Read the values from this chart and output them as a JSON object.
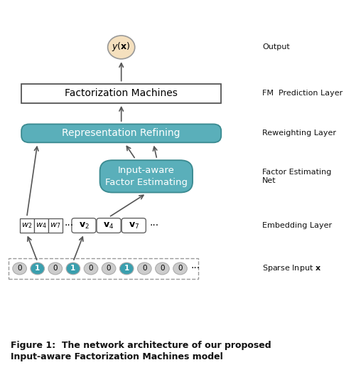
{
  "title": "Figure 1:  The network architecture of our proposed\nInput-aware Factorization Machines model",
  "output_label": "Output",
  "fm_label": "FM  Prediction Layer",
  "reweight_label": "Reweighting Layer",
  "factor_label": "Factor Estimating\nNet",
  "embed_label": "Embedding Layer",
  "sparse_label": "Sparse Input $\\mathbf{x}$",
  "fm_box_text": "Factorization Machines",
  "rr_box_text": "Representation Refining",
  "fe_box_text": "Input-aware\nFactor Estimating",
  "output_circle_text": "$y(\\mathbf{x})$",
  "sparse_values": [
    "0",
    "1",
    "0",
    "1",
    "0",
    "0",
    "1",
    "0",
    "0",
    "0"
  ],
  "sparse_highlighted": [
    1,
    3,
    6
  ],
  "embed_w_labels": [
    "$w_2$",
    "$w_4$",
    "$w_7$"
  ],
  "embed_v_labels": [
    "$\\mathbf{v}_2$",
    "$\\mathbf{v}_4$",
    "$\\mathbf{v}_7$"
  ],
  "bg_color": "#ffffff",
  "fm_box_color": "#ffffff",
  "rr_box_color": "#5aafba",
  "fe_box_color": "#5aafba",
  "output_circle_color": "#f5e0be",
  "sparse_circle_color": "#cccccc",
  "sparse_highlight_color": "#3a9fae",
  "arrow_color": "#555555",
  "label_color": "#111111",
  "caption_color": "#111111"
}
